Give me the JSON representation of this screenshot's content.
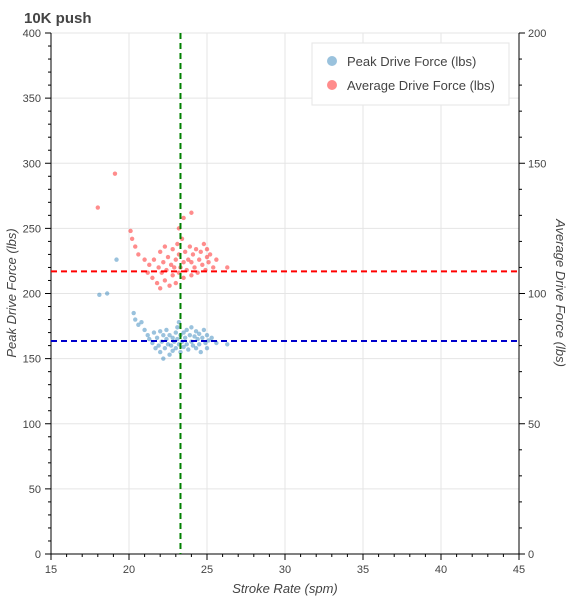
{
  "chart_data": {
    "type": "scatter",
    "title": "10K push",
    "xlabel": "Stroke Rate (spm)",
    "ylabel": "Peak Drive Force (lbs)",
    "y2label": "Average Drive Force (lbs)",
    "xlim": [
      15,
      45
    ],
    "ylim": [
      0,
      400
    ],
    "y2lim": [
      0,
      200
    ],
    "x_ticks": [
      15,
      20,
      25,
      30,
      35,
      40,
      45
    ],
    "y_ticks": [
      0,
      50,
      100,
      150,
      200,
      250,
      300,
      350,
      400
    ],
    "y2_ticks": [
      0,
      50,
      100,
      150,
      200
    ],
    "grid": true,
    "legend_position": "top-right",
    "series": [
      {
        "name": "Peak Drive Force (lbs)",
        "axis": "left",
        "color": "#1f77b4",
        "points": [
          [
            18.1,
            199
          ],
          [
            18.6,
            200
          ],
          [
            20.3,
            185
          ],
          [
            20.4,
            180
          ],
          [
            20.6,
            176
          ],
          [
            20.8,
            178
          ],
          [
            21.0,
            172
          ],
          [
            21.2,
            168
          ],
          [
            21.3,
            165
          ],
          [
            21.5,
            162
          ],
          [
            21.6,
            170
          ],
          [
            21.7,
            158
          ],
          [
            21.8,
            166
          ],
          [
            21.9,
            160
          ],
          [
            22.0,
            155
          ],
          [
            22.0,
            171
          ],
          [
            22.1,
            163
          ],
          [
            22.2,
            168
          ],
          [
            22.2,
            150
          ],
          [
            22.3,
            158
          ],
          [
            22.4,
            165
          ],
          [
            22.4,
            172
          ],
          [
            22.5,
            161
          ],
          [
            22.6,
            153
          ],
          [
            22.6,
            168
          ],
          [
            22.7,
            160
          ],
          [
            22.8,
            166
          ],
          [
            22.8,
            156
          ],
          [
            22.9,
            163
          ],
          [
            23.0,
            170
          ],
          [
            23.0,
            158
          ],
          [
            23.1,
            174
          ],
          [
            23.1,
            165
          ],
          [
            23.2,
            161
          ],
          [
            23.2,
            178
          ],
          [
            23.3,
            168
          ],
          [
            23.3,
            155
          ],
          [
            23.4,
            163
          ],
          [
            23.5,
            170
          ],
          [
            23.5,
            159
          ],
          [
            23.6,
            166
          ],
          [
            23.7,
            172
          ],
          [
            23.7,
            161
          ],
          [
            23.8,
            157
          ],
          [
            23.9,
            168
          ],
          [
            24.0,
            163
          ],
          [
            24.0,
            174
          ],
          [
            24.1,
            160
          ],
          [
            24.2,
            167
          ],
          [
            24.3,
            171
          ],
          [
            24.3,
            158
          ],
          [
            24.4,
            165
          ],
          [
            24.5,
            169
          ],
          [
            24.5,
            161
          ],
          [
            24.6,
            155
          ],
          [
            24.7,
            166
          ],
          [
            24.8,
            172
          ],
          [
            24.9,
            162
          ],
          [
            25.0,
            168
          ],
          [
            25.0,
            158
          ],
          [
            25.1,
            164
          ],
          [
            25.3,
            166
          ],
          [
            25.6,
            162
          ],
          [
            26.3,
            161
          ],
          [
            19.2,
            226
          ]
        ]
      },
      {
        "name": "Average Drive Force (lbs)",
        "axis": "right",
        "color": "#ff0000",
        "points": [
          [
            18.0,
            133
          ],
          [
            19.1,
            146
          ],
          [
            20.1,
            124
          ],
          [
            20.2,
            121
          ],
          [
            20.4,
            118
          ],
          [
            20.6,
            115
          ],
          [
            21.0,
            113
          ],
          [
            21.2,
            108
          ],
          [
            21.3,
            111
          ],
          [
            21.5,
            106
          ],
          [
            21.6,
            113
          ],
          [
            21.8,
            104
          ],
          [
            21.9,
            110
          ],
          [
            22.0,
            102
          ],
          [
            22.0,
            116
          ],
          [
            22.1,
            108
          ],
          [
            22.2,
            112
          ],
          [
            22.3,
            105
          ],
          [
            22.3,
            118
          ],
          [
            22.4,
            109
          ],
          [
            22.5,
            114
          ],
          [
            22.6,
            103
          ],
          [
            22.7,
            111
          ],
          [
            22.8,
            107
          ],
          [
            22.8,
            117
          ],
          [
            22.9,
            110
          ],
          [
            23.0,
            113
          ],
          [
            23.0,
            104
          ],
          [
            23.1,
            119
          ],
          [
            23.2,
            108
          ],
          [
            23.2,
            115
          ],
          [
            23.3,
            110
          ],
          [
            23.4,
            121
          ],
          [
            23.5,
            106
          ],
          [
            23.5,
            112
          ],
          [
            23.6,
            116
          ],
          [
            23.7,
            109
          ],
          [
            23.8,
            113
          ],
          [
            23.9,
            118
          ],
          [
            24.0,
            107
          ],
          [
            24.0,
            112
          ],
          [
            24.1,
            115
          ],
          [
            24.2,
            110
          ],
          [
            24.3,
            117
          ],
          [
            24.4,
            108
          ],
          [
            24.5,
            113
          ],
          [
            24.6,
            116
          ],
          [
            24.7,
            111
          ],
          [
            24.8,
            119
          ],
          [
            24.9,
            109
          ],
          [
            25.0,
            114
          ],
          [
            25.0,
            117
          ],
          [
            25.1,
            112
          ],
          [
            25.2,
            115
          ],
          [
            25.4,
            110
          ],
          [
            25.6,
            113
          ],
          [
            26.3,
            110
          ],
          [
            24.0,
            131
          ],
          [
            23.5,
            129
          ],
          [
            23.2,
            125
          ]
        ]
      }
    ],
    "reference_lines": [
      {
        "orientation": "vertical",
        "axis": "x",
        "value": 23.3,
        "color": "#008000"
      },
      {
        "orientation": "horizontal",
        "axis": "right",
        "value": 108.5,
        "color": "#ff0000"
      },
      {
        "orientation": "horizontal",
        "axis": "left",
        "value": 163.5,
        "color": "#0000cc"
      }
    ]
  }
}
